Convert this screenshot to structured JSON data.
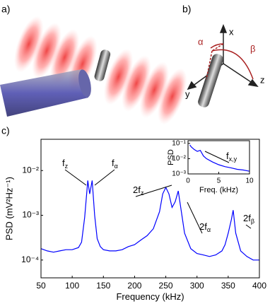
{
  "panel_labels": [
    "a)",
    "b)",
    "c)"
  ],
  "panel_b": {
    "axes": [
      "x",
      "y",
      "z"
    ],
    "angles": [
      "α",
      "β"
    ]
  },
  "chart_data": [
    {
      "type": "line",
      "log_y": true,
      "x_label": "Frequency (kHz)",
      "y_label": "PSD (mV²Hz⁻¹)",
      "x": [
        50,
        60,
        70,
        80,
        90,
        100,
        110,
        115,
        120,
        125,
        128,
        132,
        136,
        140,
        145,
        150,
        160,
        170,
        180,
        190,
        200,
        210,
        220,
        230,
        240,
        245,
        250,
        255,
        260,
        265,
        270,
        275,
        280,
        290,
        300,
        310,
        320,
        330,
        340,
        345,
        350,
        355,
        358,
        362,
        370,
        380,
        390,
        400
      ],
      "series": [
        {
          "color": "#0000ff",
          "values": [
            0.00018,
            0.00016,
            0.00015,
            0.00016,
            0.00017,
            0.00017,
            0.00019,
            0.00025,
            0.0009,
            0.006,
            0.003,
            0.006,
            0.001,
            0.0003,
            0.0002,
            0.00017,
            0.00016,
            0.00016,
            0.00017,
            0.0002,
            0.00022,
            0.00028,
            0.00035,
            0.0005,
            0.0012,
            0.003,
            0.0042,
            0.003,
            0.0015,
            0.002,
            0.0035,
            0.0012,
            0.0004,
            0.00018,
            0.00014,
            0.00013,
            0.00012,
            0.00013,
            0.00016,
            0.00022,
            0.0004,
            0.0008,
            0.0013,
            0.0004,
            0.00016,
            0.00012,
            0.0001,
            0.0001
          ]
        }
      ],
      "xlim": [
        50,
        400
      ],
      "xticks": [
        50,
        100,
        150,
        200,
        250,
        300,
        350,
        400
      ],
      "ylim": [
        4e-05,
        0.05
      ],
      "yticks": [
        {
          "value": 0.0001,
          "label": "10⁻⁴"
        },
        {
          "value": 0.001,
          "label": "10⁻³"
        },
        {
          "value": 0.01,
          "label": "10⁻²"
        }
      ],
      "annotations": [
        {
          "text": "f",
          "sub": "z"
        },
        {
          "text": "f",
          "sub": "α"
        },
        {
          "text": "2f",
          "sub": "z"
        },
        {
          "text": "2f",
          "sub": "α"
        },
        {
          "text": "2f",
          "sub": "β"
        }
      ]
    },
    {
      "type": "line",
      "log_y": true,
      "x_label": "Freq. (kHz)",
      "y_label": "PSD",
      "x": [
        0.3,
        0.5,
        1,
        1.5,
        2,
        2.5,
        3,
        4,
        5,
        6,
        7,
        8,
        9,
        10
      ],
      "series": [
        {
          "color": "#0000ff",
          "values": [
            0.08,
            0.06,
            0.04,
            0.03,
            0.035,
            0.015,
            0.01,
            0.006,
            0.004,
            0.003,
            0.0025,
            0.002,
            0.0018,
            0.0015
          ]
        }
      ],
      "xlim": [
        0,
        10
      ],
      "xticks": [
        0,
        5,
        10
      ],
      "ylim": [
        0.001,
        0.15
      ],
      "yticks": [
        {
          "value": 0.001,
          "label": "10⁻³"
        },
        {
          "value": 0.01,
          "label": "10⁻²"
        },
        {
          "value": 0.1,
          "label": "10⁻¹"
        }
      ],
      "annotations": [
        {
          "text": "f",
          "sub": "x,y"
        }
      ]
    }
  ]
}
